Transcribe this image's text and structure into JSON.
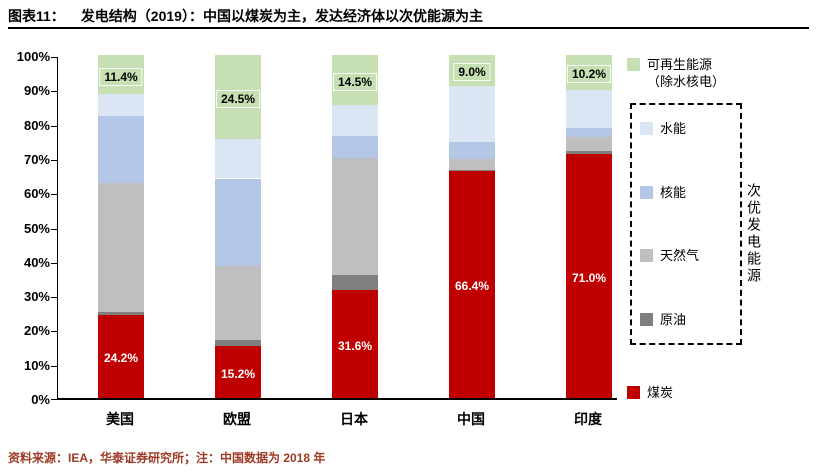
{
  "header": {
    "tag": "图表11：",
    "title": "发电结构（2019）：中国以煤炭为主，发达经济体以次优能源为主"
  },
  "chart_data": {
    "type": "bar",
    "subtype": "stacked-percentage-column",
    "title": "发电结构（2019）：中国以煤炭为主，发达经济体以次优能源为主",
    "categories": [
      "美国",
      "欧盟",
      "日本",
      "中国",
      "印度"
    ],
    "series": [
      {
        "name": "煤炭",
        "color": "#c00000",
        "values": [
          24.2,
          15.2,
          31.6,
          66.4,
          71.0
        ]
      },
      {
        "name": "原油",
        "color": "#7f7f7f",
        "values": [
          0.8,
          1.8,
          4.4,
          0.2,
          1.0
        ]
      },
      {
        "name": "天然气",
        "color": "#bfbfbf",
        "values": [
          37.6,
          21.5,
          34.0,
          3.2,
          4.2
        ]
      },
      {
        "name": "核能",
        "color": "#b4c7e7",
        "values": [
          19.5,
          25.5,
          6.5,
          4.7,
          2.6
        ]
      },
      {
        "name": "水能",
        "color": "#dae6f3",
        "values": [
          6.5,
          11.5,
          9.0,
          16.5,
          11.0
        ]
      },
      {
        "name": "可再生能源（除水核电）",
        "color": "#c6e0b4",
        "values": [
          11.4,
          24.5,
          14.5,
          9.0,
          10.2
        ]
      }
    ],
    "coal_labels": [
      "24.2%",
      "15.2%",
      "31.6%",
      "66.4%",
      "71.0%"
    ],
    "renewable_labels": [
      "11.4%",
      "24.5%",
      "14.5%",
      "9.0%",
      "10.2%"
    ],
    "y_ticks": [
      "100%",
      "90%",
      "80%",
      "70%",
      "60%",
      "50%",
      "40%",
      "30%",
      "20%",
      "10%",
      "0%"
    ],
    "ylim": [
      0,
      100
    ],
    "grid": "off",
    "legend_position": "right"
  },
  "legend": {
    "renewable": {
      "label_line1": "可再生能源",
      "label_line2": "（除水核电）",
      "color": "#c6e0b4"
    },
    "boxed_items": [
      {
        "label": "水能",
        "color": "#dae6f3"
      },
      {
        "label": "核能",
        "color": "#b4c7e7"
      },
      {
        "label": "天然气",
        "color": "#bfbfbf"
      },
      {
        "label": "原油",
        "color": "#7f7f7f"
      }
    ],
    "box_caption": "次优发电能源",
    "coal": {
      "label": "煤炭",
      "color": "#c00000"
    }
  },
  "footer": {
    "source": "资料来源：IEA，华泰证券研究所；注：中国数据为 2018 年"
  }
}
